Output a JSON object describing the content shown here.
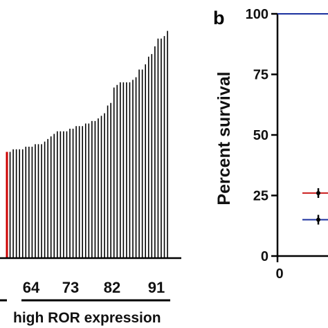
{
  "chart_data": [
    {
      "type": "bar",
      "xlabel": "high ROR expression",
      "x_ticks": [
        "64",
        "73",
        "82",
        "91"
      ],
      "highlight_color": "#cc0000",
      "bar_color": "#000000",
      "values": [
        0.41,
        0.41,
        0.42,
        0.42,
        0.42,
        0.42,
        0.43,
        0.43,
        0.43,
        0.44,
        0.44,
        0.44,
        0.45,
        0.46,
        0.47,
        0.48,
        0.49,
        0.49,
        0.49,
        0.49,
        0.5,
        0.5,
        0.51,
        0.51,
        0.51,
        0.52,
        0.52,
        0.53,
        0.53,
        0.54,
        0.55,
        0.56,
        0.59,
        0.6,
        0.66,
        0.67,
        0.68,
        0.68,
        0.68,
        0.68,
        0.69,
        0.7,
        0.73,
        0.73,
        0.75,
        0.78,
        0.79,
        0.82,
        0.85,
        0.85,
        0.86,
        0.88
      ]
    },
    {
      "type": "line",
      "panel_label": "b",
      "ylabel": "Percent survival",
      "y_ticks": [
        "0",
        "25",
        "50",
        "75",
        "100"
      ],
      "x_ticks": [
        "0"
      ],
      "ylim": [
        0,
        100
      ],
      "series": [
        {
          "color": "#1a2f9e",
          "values": [
            100
          ]
        },
        {
          "color": "#cc2222",
          "censor_y": 26,
          "values": [
            26
          ]
        },
        {
          "color": "#1a2f9e",
          "censor_y": 15,
          "values": [
            15
          ]
        }
      ]
    }
  ]
}
